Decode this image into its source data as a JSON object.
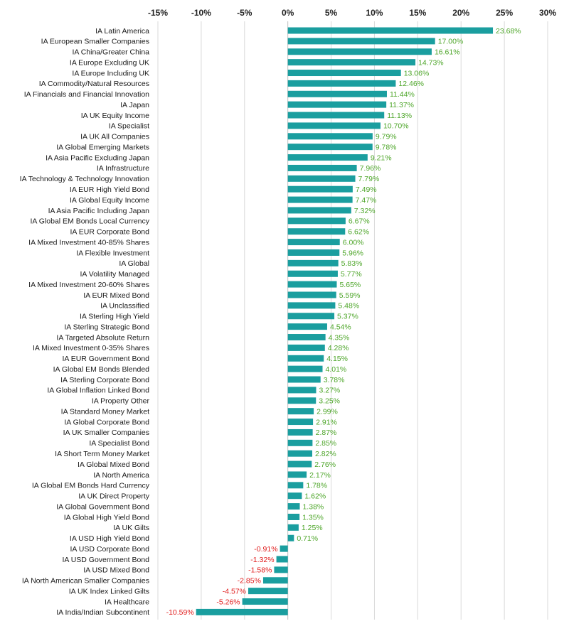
{
  "chart_data": {
    "type": "bar",
    "orientation": "horizontal",
    "title": "",
    "xlabel": "",
    "ylabel": "",
    "xlim": [
      -15,
      30
    ],
    "x_ticks": [
      -15,
      -10,
      -5,
      0,
      5,
      10,
      15,
      20,
      25,
      30
    ],
    "x_tick_labels": [
      "-15%",
      "-10%",
      "-5%",
      "0%",
      "5%",
      "10%",
      "15%",
      "20%",
      "25%",
      "30%"
    ],
    "x_axis_position": "top",
    "grid": true,
    "legend": "none",
    "colors": {
      "bar": "#1a9e9f",
      "positive_label": "#4ea62a",
      "negative_label": "#e01b1b",
      "grid": "#d9d9d9"
    },
    "categories": [
      "IA Latin America",
      "IA European Smaller Companies",
      "IA China/Greater China",
      "IA Europe Excluding UK",
      "IA Europe Including UK",
      "IA Commodity/Natural Resources",
      "IA Financials and Financial Innovation",
      "IA Japan",
      "IA UK Equity Income",
      "IA Specialist",
      "IA UK All Companies",
      "IA Global Emerging Markets",
      "IA Asia Pacific Excluding Japan",
      "IA Infrastructure",
      "IA Technology & Technology Innovation",
      "IA EUR High Yield Bond",
      "IA Global Equity Income",
      "IA Asia Pacific Including Japan",
      "IA Global EM Bonds Local Currency",
      "IA EUR Corporate Bond",
      "IA Mixed Investment 40-85% Shares",
      "IA Flexible Investment",
      "IA Global",
      "IA Volatility Managed",
      "IA Mixed Investment 20-60% Shares",
      "IA EUR Mixed Bond",
      "IA Unclassified",
      "IA Sterling High Yield",
      "IA Sterling Strategic Bond",
      "IA Targeted Absolute Return",
      "IA Mixed Investment 0-35% Shares",
      "IA EUR Government Bond",
      "IA Global EM Bonds Blended",
      "IA Sterling Corporate Bond",
      "IA Global Inflation Linked Bond",
      "IA Property Other",
      "IA Standard Money Market",
      "IA Global Corporate Bond",
      "IA UK Smaller Companies",
      "IA Specialist Bond",
      "IA Short Term Money Market",
      "IA Global Mixed Bond",
      "IA North America",
      "IA Global EM Bonds Hard Currency",
      "IA UK Direct Property",
      "IA Global Government Bond",
      "IA Global High Yield Bond",
      "IA UK Gilts",
      "IA USD High Yield Bond",
      "IA USD Corporate Bond",
      "IA USD Government Bond",
      "IA USD Mixed Bond",
      "IA North American Smaller Companies",
      "IA UK Index Linked Gilts",
      "IA Healthcare",
      "IA India/Indian Subcontinent"
    ],
    "values": [
      23.68,
      17.0,
      16.61,
      14.73,
      13.06,
      12.46,
      11.44,
      11.37,
      11.13,
      10.7,
      9.79,
      9.78,
      9.21,
      7.96,
      7.79,
      7.49,
      7.47,
      7.32,
      6.67,
      6.62,
      6.0,
      5.96,
      5.83,
      5.77,
      5.65,
      5.59,
      5.48,
      5.37,
      4.54,
      4.35,
      4.28,
      4.15,
      4.01,
      3.78,
      3.27,
      3.25,
      2.99,
      2.91,
      2.87,
      2.85,
      2.82,
      2.76,
      2.17,
      1.78,
      1.62,
      1.38,
      1.35,
      1.25,
      0.71,
      -0.91,
      -1.32,
      -1.58,
      -2.85,
      -4.57,
      -5.26,
      -10.59
    ],
    "value_labels": [
      "23.68%",
      "17.00%",
      "16.61%",
      "14.73%",
      "13.06%",
      "12.46%",
      "11.44%",
      "11.37%",
      "11.13%",
      "10.70%",
      "9.79%",
      "9.78%",
      "9.21%",
      "7.96%",
      "7.79%",
      "7.49%",
      "7.47%",
      "7.32%",
      "6.67%",
      "6.62%",
      "6.00%",
      "5.96%",
      "5.83%",
      "5.77%",
      "5.65%",
      "5.59%",
      "5.48%",
      "5.37%",
      "4.54%",
      "4.35%",
      "4.28%",
      "4.15%",
      "4.01%",
      "3.78%",
      "3.27%",
      "3.25%",
      "2.99%",
      "2.91%",
      "2.87%",
      "2.85%",
      "2.82%",
      "2.76%",
      "2.17%",
      "1.78%",
      "1.62%",
      "1.38%",
      "1.35%",
      "1.25%",
      "0.71%",
      "-0.91%",
      "-1.32%",
      "-1.58%",
      "-2.85%",
      "-4.57%",
      "-5.26%",
      "-10.59%"
    ]
  }
}
